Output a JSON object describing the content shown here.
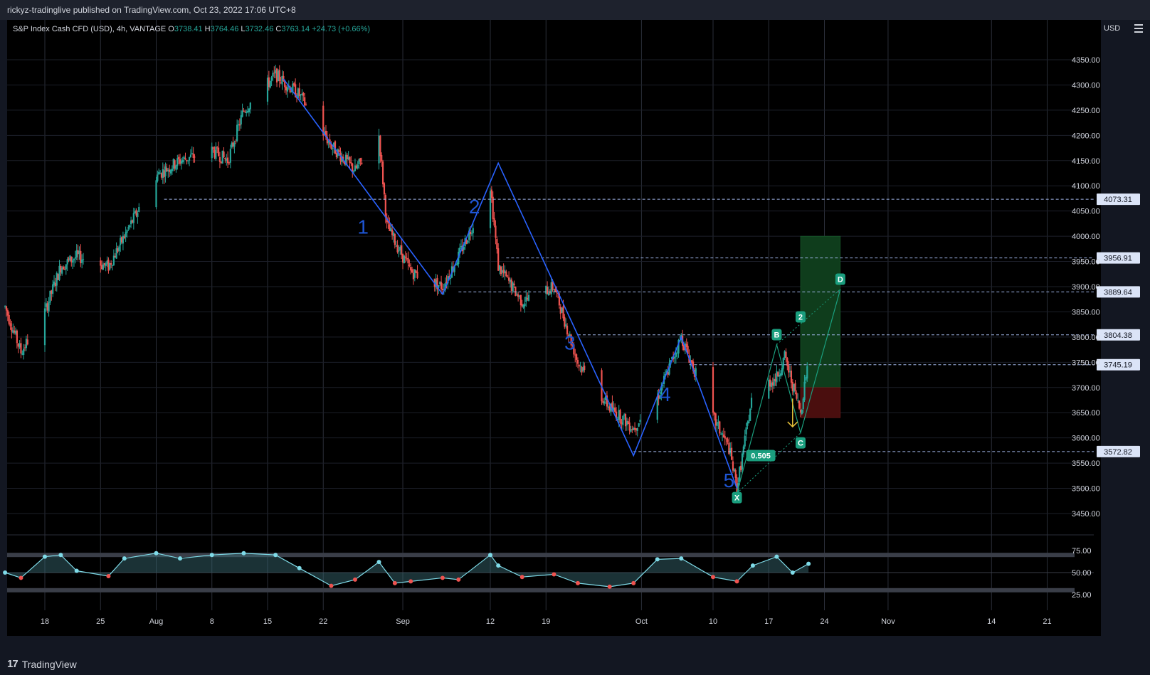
{
  "header": {
    "publisher": "rickyz-tradinglive published on TradingView.com, Oct 23, 2022 17:06 UTC+8"
  },
  "legend": {
    "symbol": "S&P Index Cash CFD (USD), 4h, VANTAGE",
    "open_label": "O",
    "open": "3738.41",
    "high_label": "H",
    "high": "3764.46",
    "low_label": "L",
    "low": "3732.46",
    "close_label": "C",
    "close": "3763.14",
    "change": "+24.73 (+0.66%)"
  },
  "currency": "USD",
  "footer": {
    "brand": "TradingView"
  },
  "colors": {
    "up": "#26a69a",
    "down": "#ef5350",
    "wave": "#2962ff",
    "wave_label": "#1e55d4",
    "guide": "#1a9e7e",
    "dashed": "#9fb4e6",
    "osc_light": "#7fdbe8",
    "gold": "#e8c23a"
  },
  "chart_data": [
    {
      "type": "candlestick",
      "symbol": "S&P Index Cash CFD (USD)",
      "interval": "4h",
      "ylim": [
        3420,
        4400
      ],
      "price_ticks": [
        "4350.00",
        "4300.00",
        "4250.00",
        "4200.00",
        "4150.00",
        "4100.00",
        "4050.00",
        "4000.00",
        "3950.00",
        "3900.00",
        "3850.00",
        "3800.00",
        "3750.00",
        "3700.00",
        "3650.00",
        "3600.00",
        "3550.00",
        "3500.00",
        "3450.00"
      ],
      "x_ticks": [
        "18",
        "25",
        "Aug",
        "8",
        "15",
        "22",
        "Sep",
        "12",
        "19",
        "Oct",
        "10",
        "17",
        "24",
        "Nov",
        "14",
        "21"
      ],
      "price_path": [
        {
          "date": "2022-07-13",
          "price": 3860
        },
        {
          "date": "2022-07-15",
          "price": 3770
        },
        {
          "date": "2022-07-18",
          "price": 3850
        },
        {
          "date": "2022-07-20",
          "price": 3940
        },
        {
          "date": "2022-07-22",
          "price": 3960
        },
        {
          "date": "2022-07-26",
          "price": 3940
        },
        {
          "date": "2022-07-28",
          "price": 4000
        },
        {
          "date": "2022-08-01",
          "price": 4120
        },
        {
          "date": "2022-08-04",
          "price": 4150
        },
        {
          "date": "2022-08-08",
          "price": 4170
        },
        {
          "date": "2022-08-10",
          "price": 4150
        },
        {
          "date": "2022-08-12",
          "price": 4250
        },
        {
          "date": "2022-08-16",
          "price": 4320
        },
        {
          "date": "2022-08-19",
          "price": 4280
        },
        {
          "date": "2022-08-23",
          "price": 4180
        },
        {
          "date": "2022-08-26",
          "price": 4130
        },
        {
          "date": "2022-08-29",
          "price": 4200
        },
        {
          "date": "2022-08-30",
          "price": 4020
        },
        {
          "date": "2022-09-02",
          "price": 3930
        },
        {
          "date": "2022-09-06",
          "price": 3900
        },
        {
          "date": "2022-09-08",
          "price": 3960
        },
        {
          "date": "2022-09-12",
          "price": 4100
        },
        {
          "date": "2022-09-13",
          "price": 3940
        },
        {
          "date": "2022-09-16",
          "price": 3870
        },
        {
          "date": "2022-09-20",
          "price": 3900
        },
        {
          "date": "2022-09-23",
          "price": 3750
        },
        {
          "date": "2022-09-27",
          "price": 3660
        },
        {
          "date": "2022-09-30",
          "price": 3620
        },
        {
          "date": "2022-10-03",
          "price": 3680
        },
        {
          "date": "2022-10-06",
          "price": 3800
        },
        {
          "date": "2022-10-07",
          "price": 3760
        },
        {
          "date": "2022-10-10",
          "price": 3640
        },
        {
          "date": "2022-10-12",
          "price": 3580
        },
        {
          "date": "2022-10-13",
          "price": 3500
        },
        {
          "date": "2022-10-15",
          "price": 3690
        },
        {
          "date": "2022-10-18",
          "price": 3720
        },
        {
          "date": "2022-10-19",
          "price": 3760
        },
        {
          "date": "2022-10-21",
          "price": 3650
        },
        {
          "date": "2022-10-22",
          "price": 3763
        }
      ],
      "horizontal_levels": [
        {
          "price": 4073.31,
          "label": "4073.31",
          "from_date": "2022-08-02"
        },
        {
          "price": 3956.91,
          "label": "3956.91",
          "from_date": "2022-09-14"
        },
        {
          "price": 3889.64,
          "label": "3889.64",
          "from_date": "2022-09-08"
        },
        {
          "price": 3804.38,
          "label": "3804.38",
          "from_date": "2022-09-23"
        },
        {
          "price": 3745.19,
          "label": "3745.19",
          "from_date": "2022-10-07"
        },
        {
          "price": 3572.82,
          "label": "3572.82",
          "from_date": "2022-09-30"
        }
      ],
      "elliott_wave": [
        {
          "date": "2022-08-17",
          "price": 4312,
          "label": ""
        },
        {
          "date": "2022-09-06",
          "price": 3885,
          "label": "1"
        },
        {
          "date": "2022-09-13",
          "price": 4145,
          "label": "2"
        },
        {
          "date": "2022-09-30",
          "price": 3565,
          "label": "3"
        },
        {
          "date": "2022-10-06",
          "price": 3800,
          "label": "4"
        },
        {
          "date": "2022-10-13",
          "price": 3500,
          "label": "5"
        }
      ],
      "wave_label_positions": [
        {
          "text": "1",
          "date": "2022-08-27",
          "price": 4005
        },
        {
          "text": "2",
          "date": "2022-09-10",
          "price": 4045
        },
        {
          "text": "3",
          "date": "2022-09-22",
          "price": 3775
        },
        {
          "text": "4",
          "date": "2022-10-04",
          "price": 3673
        },
        {
          "text": "5",
          "date": "2022-10-12",
          "price": 3502
        }
      ],
      "harmonic_pattern": {
        "points": [
          {
            "name": "X",
            "text": "X",
            "date": "2022-10-13",
            "price": 3490
          },
          {
            "name": "B",
            "text": "B",
            "date": "2022-10-18",
            "price": 3785
          },
          {
            "name": "C",
            "text": "C",
            "date": "2022-10-21",
            "price": 3610
          },
          {
            "name": "D",
            "text": "D",
            "date": "2022-10-26",
            "price": 3895
          }
        ],
        "ratio_labels": [
          {
            "text": "0.505",
            "date": "2022-10-16",
            "price": 3565
          },
          {
            "text": "2",
            "date": "2022-10-21",
            "price": 3840
          }
        ]
      },
      "position_tool": {
        "entry": 3700,
        "stop": 3640,
        "target": 4000,
        "start_date": "2022-10-21",
        "end_date": "2022-10-26"
      },
      "projection_arrow": {
        "from": {
          "date": "2022-10-20",
          "price": 3678
        },
        "to": {
          "date": "2022-10-20",
          "price": 3622
        }
      }
    },
    {
      "type": "line",
      "name": "oscillator",
      "ylim": [
        15,
        85
      ],
      "y_ticks": [
        "75.00",
        "50.00",
        "25.00"
      ],
      "band": [
        30,
        70
      ],
      "x": [
        "2022-07-13",
        "2022-07-15",
        "2022-07-18",
        "2022-07-20",
        "2022-07-22",
        "2022-07-26",
        "2022-07-28",
        "2022-08-01",
        "2022-08-04",
        "2022-08-08",
        "2022-08-12",
        "2022-08-16",
        "2022-08-19",
        "2022-08-23",
        "2022-08-26",
        "2022-08-29",
        "2022-08-31",
        "2022-09-02",
        "2022-09-06",
        "2022-09-08",
        "2022-09-12",
        "2022-09-13",
        "2022-09-16",
        "2022-09-20",
        "2022-09-23",
        "2022-09-27",
        "2022-09-30",
        "2022-10-03",
        "2022-10-06",
        "2022-10-10",
        "2022-10-13",
        "2022-10-15",
        "2022-10-18",
        "2022-10-20",
        "2022-10-22"
      ],
      "values": [
        50,
        44,
        68,
        70,
        52,
        46,
        66,
        72,
        66,
        70,
        72,
        70,
        55,
        35,
        42,
        62,
        38,
        40,
        44,
        42,
        70,
        58,
        45,
        48,
        38,
        34,
        38,
        65,
        66,
        45,
        40,
        58,
        68,
        50,
        60
      ]
    }
  ]
}
